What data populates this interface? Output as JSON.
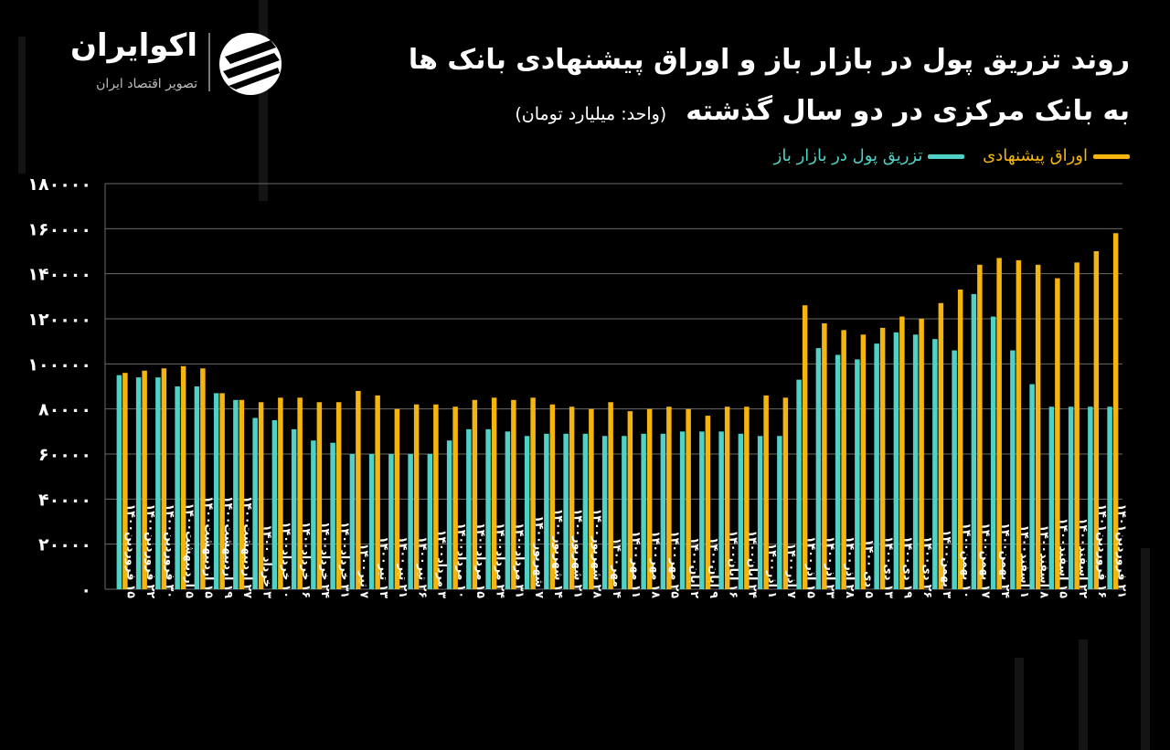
{
  "brand": {
    "name": "اکوایران",
    "tagline": "تصویر اقتصاد ایران"
  },
  "title_line1": "روند تزریق پول در بازار باز و اوراق پیشنهادی بانک ها",
  "title_line2": "به بانک مرکزی در دو سال گذشته",
  "unit_label": "(واحد: میلیارد تومان)",
  "legend": {
    "offered": "اوراق پیشنهادی",
    "injection": "تزریق پول در بازار باز"
  },
  "colors": {
    "offered": "#f5b50f",
    "injection": "#4fd1c5",
    "grid": "#6a6a6a",
    "text": "#ffffff"
  },
  "chart_data": {
    "type": "bar",
    "ylim": [
      0,
      180000
    ],
    "yticks": [
      "۰",
      "۲۰۰۰۰",
      "۴۰۰۰۰",
      "۶۰۰۰۰",
      "۸۰۰۰۰",
      "۱۰۰۰۰۰",
      "۱۲۰۰۰۰",
      "۱۴۰۰۰۰",
      "۱۶۰۰۰۰",
      "۱۸۰۰۰۰"
    ],
    "ytick_values": [
      0,
      20000,
      40000,
      60000,
      80000,
      100000,
      120000,
      140000,
      160000,
      180000
    ],
    "grid": true,
    "legend_position": "top-right",
    "categories": [
      "۱۵ فروردین۱۴۰۰",
      "۲۲ فروردین۱۴۰۰",
      "۳۰ فروردین۱۴۰۰",
      "۵ اردیبهشت۱۴۰۰",
      "۱۵ اردیبهشت۱۴۰۰",
      "۱۹ اردیبهشت۱۴۰۰",
      "۲۷ اردیبهشت۱۴۰۰",
      "۳ خرداد ۱۴۰۰",
      "۱۰ خرداد۱۴۰۰",
      "۱۶ خرداد۱۴۰۰",
      "۲۴ خرداد۱۴۰۰",
      "۳۱ خرداد۱۴۰۰",
      "۷ تیر۱۴۰۰",
      "۱۳ تیر۱۴۰۰",
      "۲۱ تیر۱۴۰۰",
      "۲۶ تیر۱۴۰۰",
      "۳ مرداد۱۴۰۰",
      "۱۰ مرداد۱۴۰۰",
      "۱۵ مرداد۱۴۰۰",
      "۲۴ مرداد۱۴۰۰",
      "۳۱ مرداد۱۴۰۰",
      "۷ شهریور۱۴۰۰",
      "۱۴ شهریور۱۴۰۰",
      "۲۱ شهریور۱۴۰۰",
      "۲۸ شهریور۱۴۰۰",
      "۴ مهر۱۴۰۰",
      "۱۱ مهر۱۴۰۰",
      "۱۸ مهر۱۴۰۰",
      "۲۵ مهر۱۴۰۰",
      "۲ آبان۱۴۰۰",
      "۹ آبان۱۴۰۰",
      "۱۶ آبان۱۴۰۰",
      "۲۴ آبان۱۴۰۰",
      "۱ آذر۱۴۰۰",
      "۷ آذر۱۴۰۰",
      "۱۵ آذر۱۴۰۰",
      "۲۳ آذر۱۴۰۰",
      "۲۸ آذر۱۴۰۰",
      "۵ دی ۱۴۰۰",
      "۱۳ دی۱۴۰۰",
      "۱۹ دی۱۴۰۰",
      "۲۶ دی۱۴۰۰",
      "۳ بهمن۱۴۰۰",
      "۱۰ بهمن۱۴۰۰",
      "۱۷ بهمن۱۴۰۰",
      "۲۴ بهمن۱۴۰۰",
      "۱ اسفند۱۴۰۰",
      "۸ اسفند۱۴۰۰",
      "۱۵ اسفند۱۴۰۰",
      "۲۲ اسفند۱۴۰۰",
      "۱۶ فروردین۱۴۰۱",
      "۲۱ فروردین۱۴۰۱"
    ],
    "series": [
      {
        "name": "تزریق پول در بازار باز",
        "values": [
          95000,
          94000,
          94000,
          90000,
          90000,
          87000,
          84000,
          76000,
          75000,
          71000,
          66000,
          65000,
          60000,
          60000,
          60000,
          60000,
          60000,
          66000,
          71000,
          71000,
          70000,
          68000,
          69000,
          69000,
          69000,
          68000,
          68000,
          69000,
          69000,
          70000,
          70000,
          70000,
          69000,
          68000,
          68000,
          93000,
          107000,
          104000,
          102000,
          109000,
          114000,
          113000,
          111000,
          106000,
          131000,
          121000,
          106000,
          91000,
          81000,
          81000,
          81000,
          81000
        ]
      },
      {
        "name": "اوراق پیشنهادی",
        "values": [
          96000,
          97000,
          98000,
          99000,
          98000,
          87000,
          84000,
          83000,
          85000,
          85000,
          83000,
          83000,
          88000,
          86000,
          80000,
          82000,
          82000,
          81000,
          84000,
          85000,
          84000,
          85000,
          82000,
          81000,
          80000,
          83000,
          79000,
          80000,
          81000,
          80000,
          77000,
          81000,
          81000,
          86000,
          85000,
          126000,
          118000,
          115000,
          113000,
          116000,
          121000,
          120000,
          127000,
          133000,
          144000,
          147000,
          146000,
          144000,
          138000,
          145000,
          150000,
          158000
        ]
      }
    ]
  }
}
